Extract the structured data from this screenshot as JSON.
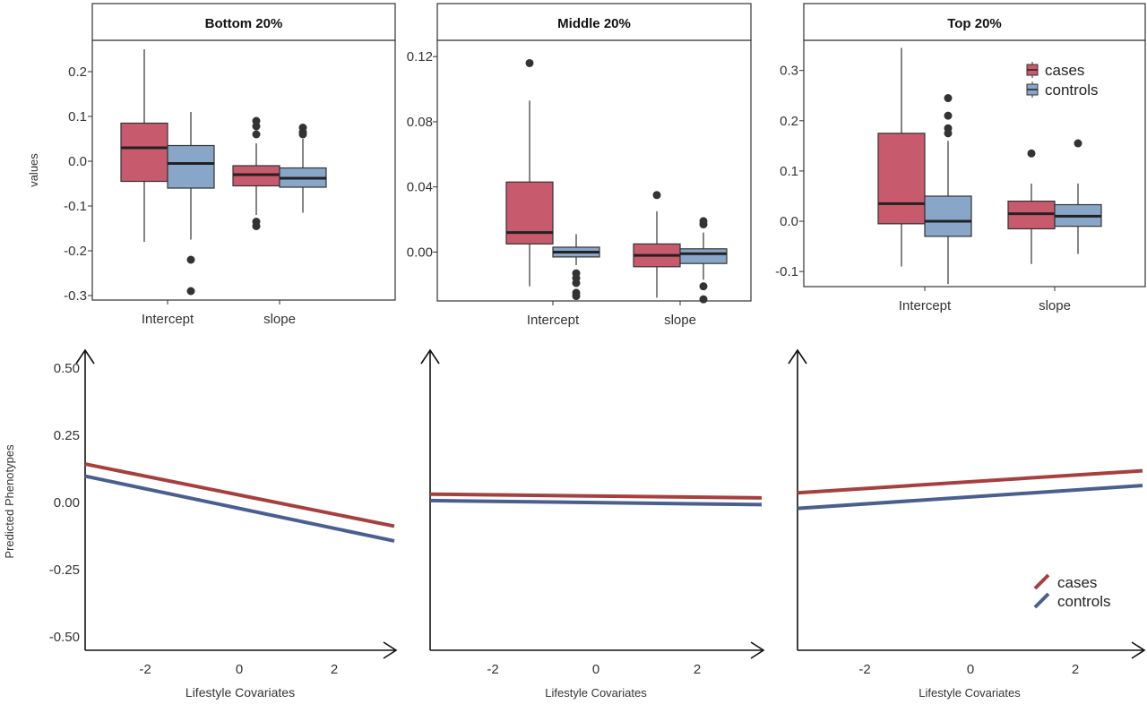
{
  "chart_data": [
    {
      "type": "box",
      "panel": "top-left",
      "title": "Bottom 20%",
      "ylabel": "values",
      "xlabel": "",
      "categories": [
        "Intercept",
        "slope"
      ],
      "ylim": [
        -0.31,
        0.27
      ],
      "yticks": [
        {
          "v": 0.2,
          "label": "0.2"
        },
        {
          "v": 0.1,
          "label": "0.1"
        },
        {
          "v": 0.0,
          "label": "0.0"
        },
        {
          "v": -0.1,
          "label": "-0.1"
        },
        {
          "v": -0.2,
          "label": "-0.2"
        },
        {
          "v": -0.3,
          "label": "-0.3"
        }
      ],
      "series": [
        {
          "group": "cases",
          "color": "#c75a6c",
          "boxes": [
            {
              "category": "Intercept",
              "whisker_low": -0.18,
              "q1": -0.045,
              "median": 0.03,
              "q3": 0.085,
              "whisker_high": 0.25,
              "outliers": []
            },
            {
              "category": "slope",
              "whisker_low": -0.12,
              "q1": -0.055,
              "median": -0.03,
              "q3": -0.01,
              "whisker_high": 0.04,
              "outliers": [
                0.09,
                0.078,
                0.06,
                -0.135,
                -0.145
              ]
            }
          ]
        },
        {
          "group": "controls",
          "color": "#88a6c8",
          "boxes": [
            {
              "category": "Intercept",
              "whisker_low": -0.175,
              "q1": -0.06,
              "median": -0.005,
              "q3": 0.035,
              "whisker_high": 0.11,
              "outliers": [
                -0.22,
                -0.29
              ]
            },
            {
              "category": "slope",
              "whisker_low": -0.115,
              "q1": -0.058,
              "median": -0.038,
              "q3": -0.015,
              "whisker_high": 0.05,
              "outliers": [
                0.075,
                0.065,
                0.06
              ]
            }
          ]
        }
      ]
    },
    {
      "type": "box",
      "panel": "top-middle",
      "title": "Middle 20%",
      "ylabel": "",
      "xlabel": "",
      "categories": [
        "Intercept",
        "slope"
      ],
      "ylim": [
        -0.03,
        0.13
      ],
      "yticks": [
        {
          "v": 0.12,
          "label": "0.12"
        },
        {
          "v": 0.08,
          "label": "0.08"
        },
        {
          "v": 0.04,
          "label": "0.04"
        },
        {
          "v": 0.0,
          "label": "0.00"
        }
      ],
      "series": [
        {
          "group": "cases",
          "color": "#c75a6c",
          "boxes": [
            {
              "category": "Intercept",
              "whisker_low": -0.021,
              "q1": 0.005,
              "median": 0.012,
              "q3": 0.043,
              "whisker_high": 0.093,
              "outliers": [
                0.116
              ]
            },
            {
              "category": "slope",
              "whisker_low": -0.028,
              "q1": -0.009,
              "median": -0.002,
              "q3": 0.005,
              "whisker_high": 0.025,
              "outliers": [
                0.035
              ]
            }
          ]
        },
        {
          "group": "controls",
          "color": "#88a6c8",
          "boxes": [
            {
              "category": "Intercept",
              "whisker_low": -0.008,
              "q1": -0.003,
              "median": 0.0,
              "q3": 0.003,
              "whisker_high": 0.011,
              "outliers": [
                -0.013,
                -0.016,
                -0.019,
                -0.025,
                -0.027
              ]
            },
            {
              "category": "slope",
              "whisker_low": -0.017,
              "q1": -0.007,
              "median": -0.001,
              "q3": 0.002,
              "whisker_high": 0.012,
              "outliers": [
                0.017,
                0.019,
                -0.021,
                -0.029
              ]
            }
          ]
        }
      ]
    },
    {
      "type": "box",
      "panel": "top-right",
      "title": "Top 20%",
      "ylabel": "",
      "xlabel": "",
      "categories": [
        "Intercept",
        "slope"
      ],
      "ylim": [
        -0.13,
        0.36
      ],
      "yticks": [
        {
          "v": 0.3,
          "label": "0.3"
        },
        {
          "v": 0.2,
          "label": "0.2"
        },
        {
          "v": 0.1,
          "label": "0.1"
        },
        {
          "v": 0.0,
          "label": "0.0"
        },
        {
          "v": -0.1,
          "label": "-0.1"
        }
      ],
      "legend": {
        "position": "top-right",
        "entries": [
          {
            "name": "cases",
            "color": "#c75a6c"
          },
          {
            "name": "controls",
            "color": "#88a6c8"
          }
        ]
      },
      "series": [
        {
          "group": "cases",
          "color": "#c75a6c",
          "boxes": [
            {
              "category": "Intercept",
              "whisker_low": -0.09,
              "q1": -0.005,
              "median": 0.035,
              "q3": 0.175,
              "whisker_high": 0.345,
              "outliers": []
            },
            {
              "category": "slope",
              "whisker_low": -0.085,
              "q1": -0.015,
              "median": 0.015,
              "q3": 0.04,
              "whisker_high": 0.075,
              "outliers": [
                0.135
              ]
            }
          ]
        },
        {
          "group": "controls",
          "color": "#88a6c8",
          "boxes": [
            {
              "category": "Intercept",
              "whisker_low": -0.125,
              "q1": -0.03,
              "median": 0.0,
              "q3": 0.05,
              "whisker_high": 0.16,
              "outliers": [
                0.245,
                0.21,
                0.185,
                0.175
              ]
            },
            {
              "category": "slope",
              "whisker_low": -0.065,
              "q1": -0.01,
              "median": 0.01,
              "q3": 0.033,
              "whisker_high": 0.075,
              "outliers": [
                0.155
              ]
            }
          ]
        }
      ]
    },
    {
      "type": "line",
      "panel": "bottom-left",
      "ylabel": "Predicted Phenotypes",
      "xlabel": "Lifestyle Covariates",
      "xlim": [
        -3.2,
        3.2
      ],
      "ylim": [
        -0.55,
        0.55
      ],
      "xticks": [
        {
          "v": -2,
          "label": "-2"
        },
        {
          "v": 0,
          "label": "0"
        },
        {
          "v": 2,
          "label": "2"
        }
      ],
      "yticks": [
        {
          "v": 0.5,
          "label": "0.50"
        },
        {
          "v": 0.25,
          "label": "0.25"
        },
        {
          "v": 0.0,
          "label": "0.00"
        },
        {
          "v": -0.25,
          "label": "-0.25"
        },
        {
          "v": -0.5,
          "label": "-0.50"
        }
      ],
      "series": [
        {
          "group": "cases",
          "color": "#a5403f",
          "x": [
            -3.2,
            3.2
          ],
          "y": [
            0.143,
            -0.088
          ]
        },
        {
          "group": "controls",
          "color": "#4a5f8f",
          "x": [
            -3.2,
            3.2
          ],
          "y": [
            0.098,
            -0.143
          ]
        }
      ]
    },
    {
      "type": "line",
      "panel": "bottom-middle",
      "ylabel": "",
      "xlabel": "Lifestyle Covariates",
      "xlim": [
        -3.2,
        3.2
      ],
      "ylim": [
        -0.55,
        0.55
      ],
      "xticks": [
        {
          "v": -2,
          "label": "-2"
        },
        {
          "v": 0,
          "label": "0"
        },
        {
          "v": 2,
          "label": "2"
        }
      ],
      "yticks": [],
      "series": [
        {
          "group": "cases",
          "color": "#a5403f",
          "x": [
            -3.2,
            3.2
          ],
          "y": [
            0.031,
            0.017
          ]
        },
        {
          "group": "controls",
          "color": "#4a5f8f",
          "x": [
            -3.2,
            3.2
          ],
          "y": [
            0.007,
            -0.008
          ]
        }
      ]
    },
    {
      "type": "line",
      "panel": "bottom-right",
      "ylabel": "",
      "xlabel": "Lifestyle Covariates",
      "xlim": [
        -3.2,
        3.2
      ],
      "ylim": [
        -0.55,
        0.55
      ],
      "xticks": [
        {
          "v": -2,
          "label": "-2"
        },
        {
          "v": 0,
          "label": "0"
        },
        {
          "v": 2,
          "label": "2"
        }
      ],
      "yticks": [],
      "legend": {
        "position": "bottom-right",
        "entries": [
          {
            "name": "cases",
            "color": "#a5403f"
          },
          {
            "name": "controls",
            "color": "#4a5f8f"
          }
        ]
      },
      "series": [
        {
          "group": "cases",
          "color": "#a5403f",
          "x": [
            -3.2,
            3.2
          ],
          "y": [
            0.036,
            0.118
          ]
        },
        {
          "group": "controls",
          "color": "#4a5f8f",
          "x": [
            -3.2,
            3.2
          ],
          "y": [
            -0.022,
            0.063
          ]
        }
      ]
    }
  ]
}
